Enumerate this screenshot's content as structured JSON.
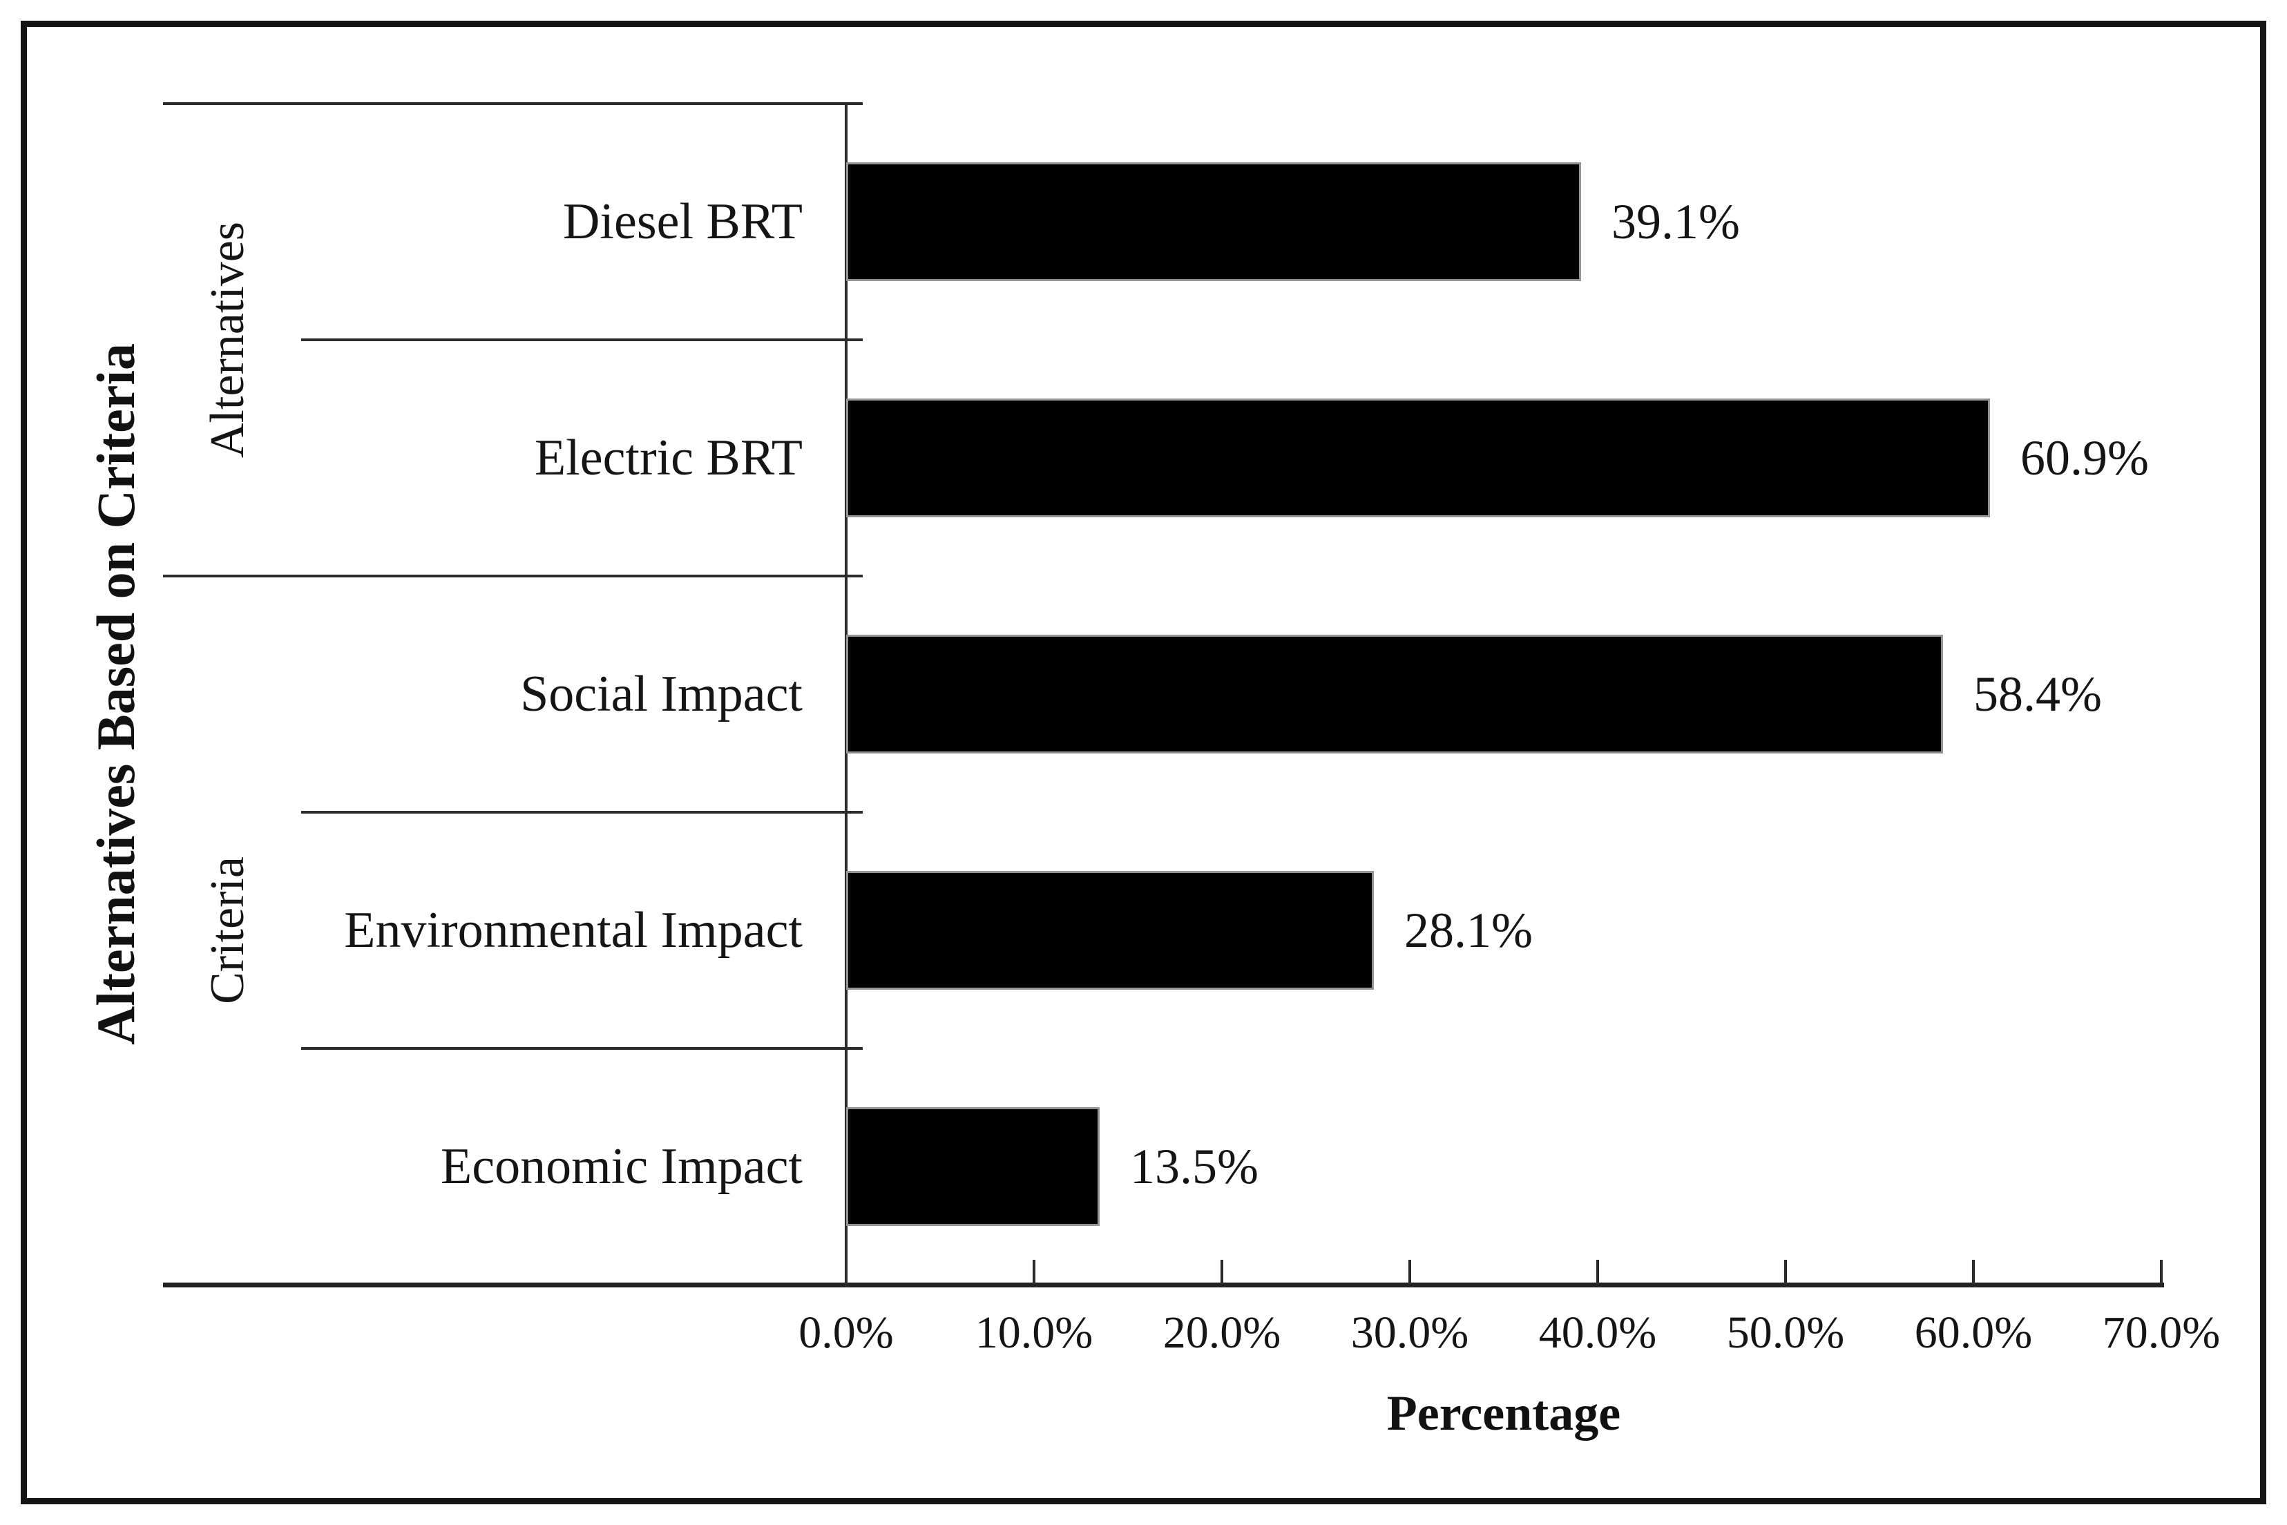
{
  "chart_data": {
    "type": "bar",
    "orientation": "horizontal",
    "title": "",
    "xlabel": "Percentage",
    "ylabel": "Alternatives Based on Criteria",
    "categories": [
      "Diesel BRT",
      "Electric BRT",
      "Social Impact",
      "Environmental Impact",
      "Economic Impact"
    ],
    "values": [
      39.1,
      60.9,
      58.4,
      28.1,
      13.5
    ],
    "data_labels": [
      "39.1%",
      "60.9%",
      "58.4%",
      "28.1%",
      "13.5%"
    ],
    "groups": [
      {
        "label": "Alternatives",
        "count": 2
      },
      {
        "label": "Criteria",
        "count": 3
      }
    ],
    "x_tick_labels": [
      "0.0%",
      "10.0%",
      "20.0%",
      "30.0%",
      "40.0%",
      "50.0%",
      "60.0%",
      "70.0%"
    ],
    "x_tick_values": [
      0,
      10,
      20,
      30,
      40,
      50,
      60,
      70
    ],
    "xlim": [
      0,
      70
    ],
    "grid": false,
    "legend": null,
    "tick_style": "inside",
    "colors": {
      "bar": "#000000",
      "bar_outline": "#949494",
      "axis_line": "#262626",
      "text": "#111111",
      "figure_border": "#141414"
    }
  }
}
